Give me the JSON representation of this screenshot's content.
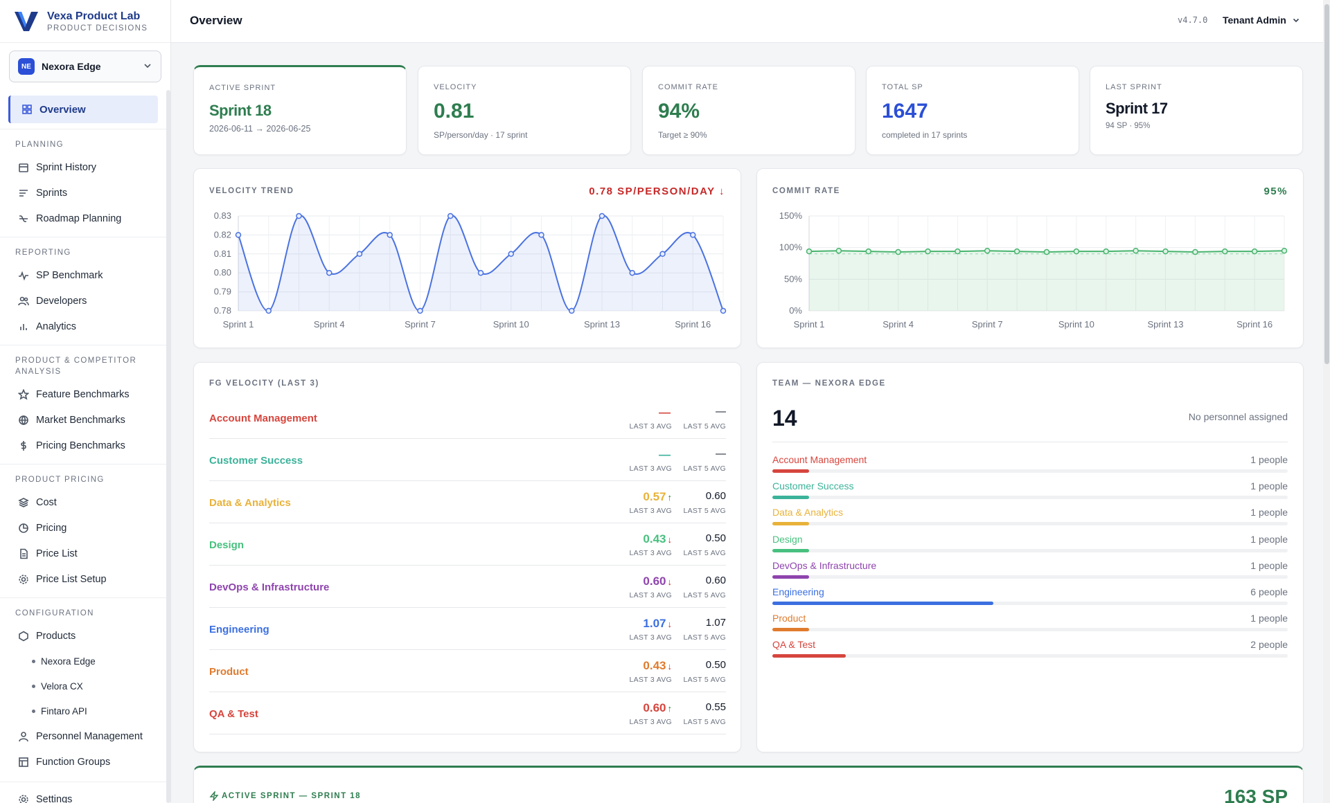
{
  "app": {
    "name": "Vexa Product Lab",
    "subtitle": "PRODUCT DECISIONS"
  },
  "tenant": {
    "initials": "NE",
    "name": "Nexora Edge"
  },
  "header": {
    "title": "Overview",
    "version": "v4.7.0",
    "user": "Tenant Admin"
  },
  "nav": {
    "overview": "Overview",
    "sections": {
      "planning": "PLANNING",
      "reporting": "REPORTING",
      "analysis": "PRODUCT & COMPETITOR ANALYSIS",
      "pricing": "PRODUCT PRICING",
      "configuration": "CONFIGURATION"
    },
    "planning": [
      "Sprint History",
      "Sprints",
      "Roadmap Planning"
    ],
    "reporting": [
      "SP Benchmark",
      "Developers",
      "Analytics"
    ],
    "analysis": [
      "Feature Benchmarks",
      "Market Benchmarks",
      "Pricing Benchmarks"
    ],
    "pricing": [
      "Cost",
      "Pricing",
      "Price List",
      "Price List Setup"
    ],
    "configuration": {
      "products": "Products",
      "product_items": [
        "Nexora Edge",
        "Velora CX",
        "Fintaro API"
      ],
      "personnel": "Personnel Management",
      "function_groups": "Function Groups"
    },
    "settings": "Settings"
  },
  "kpis": {
    "active_sprint": {
      "label": "ACTIVE SPRINT",
      "value": "Sprint 18",
      "sub": "2026-06-11 → 2026-06-25"
    },
    "velocity": {
      "label": "VELOCITY",
      "value": "0.81",
      "sub": "SP/person/day · 17 sprint"
    },
    "commit_rate": {
      "label": "COMMIT RATE",
      "value": "94%",
      "sub": "Target ≥ 90%"
    },
    "total_sp": {
      "label": "TOTAL SP",
      "value": "1647",
      "sub": "completed in 17 sprints"
    },
    "last_sprint": {
      "label": "LAST SPRINT",
      "value": "Sprint 17",
      "sub": "94 SP · 95%"
    }
  },
  "colors": {
    "accent": "#3b5bdb",
    "green": "#2e7d4f",
    "blue_value": "#2b4fd6",
    "down": "#c62828",
    "up": "#2e7d32"
  },
  "chart_data": [
    {
      "type": "line",
      "title": "VELOCITY TREND",
      "headline": "0.78 SP/PERSON/DAY ↓",
      "x": [
        "Sprint 1",
        "Sprint 2",
        "Sprint 3",
        "Sprint 4",
        "Sprint 5",
        "Sprint 6",
        "Sprint 7",
        "Sprint 8",
        "Sprint 9",
        "Sprint 10",
        "Sprint 11",
        "Sprint 12",
        "Sprint 13",
        "Sprint 14",
        "Sprint 15",
        "Sprint 16",
        "Sprint 17"
      ],
      "tick_labels": [
        "Sprint 1",
        "Sprint 4",
        "Sprint 7",
        "Sprint 10",
        "Sprint 13",
        "Sprint 16"
      ],
      "series": [
        {
          "values": [
            0.82,
            0.78,
            0.83,
            0.8,
            0.81,
            0.82,
            0.78,
            0.83,
            0.8,
            0.81,
            0.82,
            0.78,
            0.83,
            0.8,
            0.81,
            0.82,
            0.78
          ]
        }
      ],
      "ylim": [
        0.78,
        0.83
      ],
      "yticks": [
        "0.83",
        "0.82",
        "0.81",
        "0.80",
        "0.79",
        "0.78"
      ],
      "grid": true
    },
    {
      "type": "area",
      "title": "COMMIT RATE",
      "headline": "95%",
      "x": [
        "Sprint 1",
        "Sprint 2",
        "Sprint 3",
        "Sprint 4",
        "Sprint 5",
        "Sprint 6",
        "Sprint 7",
        "Sprint 8",
        "Sprint 9",
        "Sprint 10",
        "Sprint 11",
        "Sprint 12",
        "Sprint 13",
        "Sprint 14",
        "Sprint 15",
        "Sprint 16",
        "Sprint 17"
      ],
      "tick_labels": [
        "Sprint 1",
        "Sprint 4",
        "Sprint 7",
        "Sprint 10",
        "Sprint 13",
        "Sprint 16"
      ],
      "series": [
        {
          "values": [
            94,
            95,
            94,
            93,
            94,
            94,
            95,
            94,
            93,
            94,
            94,
            95,
            94,
            93,
            94,
            94,
            95
          ]
        }
      ],
      "ylim": [
        0,
        150
      ],
      "yticks": [
        "150%",
        "100%",
        "50%",
        "0%"
      ],
      "target": 90,
      "grid": true
    }
  ],
  "fg_velocity": {
    "title": "FG VELOCITY (LAST 3)",
    "last3_label": "LAST 3 AVG",
    "last5_label": "LAST 5 AVG",
    "rows": [
      {
        "name": "Account Management",
        "color": "#d6453d",
        "last3": "—",
        "last5": "—",
        "trend": ""
      },
      {
        "name": "Customer Success",
        "color": "#3bb39a",
        "last3": "—",
        "last5": "—",
        "trend": ""
      },
      {
        "name": "Data & Analytics",
        "color": "#e8b23a",
        "last3": "0.57",
        "last5": "0.60",
        "trend": "↑"
      },
      {
        "name": "Design",
        "color": "#48c07f",
        "last3": "0.43",
        "last5": "0.50",
        "trend": "↓"
      },
      {
        "name": "DevOps & Infrastructure",
        "color": "#8e44ad",
        "last3": "0.60",
        "last5": "0.60",
        "trend": "↓"
      },
      {
        "name": "Engineering",
        "color": "#3b6fe0",
        "last3": "1.07",
        "last5": "1.07",
        "trend": "↓"
      },
      {
        "name": "Product",
        "color": "#e07b2e",
        "last3": "0.43",
        "last5": "0.50",
        "trend": "↓"
      },
      {
        "name": "QA & Test",
        "color": "#d6453d",
        "last3": "0.60",
        "last5": "0.55",
        "trend": "↑"
      }
    ]
  },
  "team": {
    "title": "TEAM — NEXORA EDGE",
    "total": "14",
    "note": "No personnel assigned",
    "rows": [
      {
        "name": "Account Management",
        "color": "#d6453d",
        "count": "1 people",
        "people": 1
      },
      {
        "name": "Customer Success",
        "color": "#3bb39a",
        "count": "1 people",
        "people": 1
      },
      {
        "name": "Data & Analytics",
        "color": "#e8b23a",
        "count": "1 people",
        "people": 1
      },
      {
        "name": "Design",
        "color": "#48c07f",
        "count": "1 people",
        "people": 1
      },
      {
        "name": "DevOps & Infrastructure",
        "color": "#8e44ad",
        "count": "1 people",
        "people": 1
      },
      {
        "name": "Engineering",
        "color": "#3b6fe0",
        "count": "6 people",
        "people": 6
      },
      {
        "name": "Product",
        "color": "#e07b2e",
        "count": "1 people",
        "people": 1
      },
      {
        "name": "QA & Test",
        "color": "#d6453d",
        "count": "2 people",
        "people": 2
      }
    ]
  },
  "active_sprint_panel": {
    "title": "ACTIVE SPRINT — SPRINT 18",
    "value": "163 SP"
  }
}
